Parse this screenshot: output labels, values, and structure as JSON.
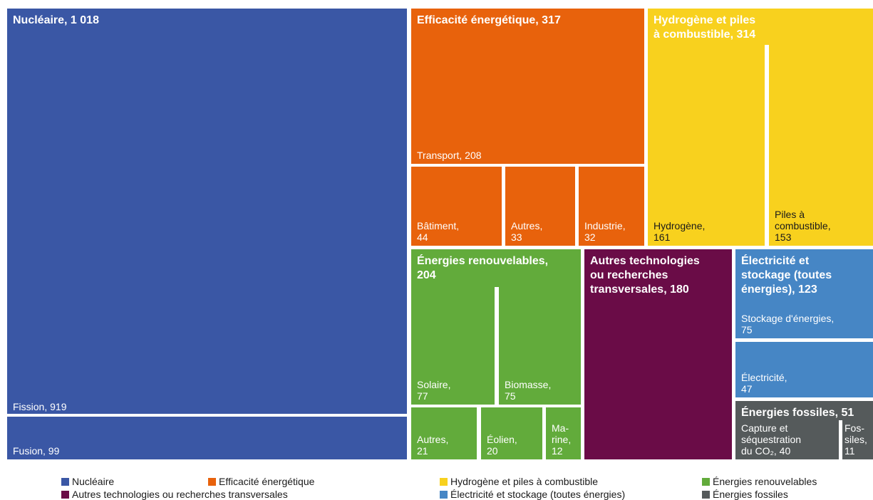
{
  "chart_data": {
    "type": "treemap",
    "categories": [
      {
        "key": "nuc",
        "name": "Nucléaire",
        "label": "Nucléaire, 1 018",
        "value": 1018,
        "color": "#3a57a5",
        "children": [
          {
            "label": "Fission, 919",
            "value": 919
          },
          {
            "label": "Fusion, 99",
            "value": 99
          }
        ]
      },
      {
        "key": "eff",
        "name": "Efficacité énergétique",
        "label": "Efficacité énergétique, 317",
        "value": 317,
        "color": "#e8620c",
        "children": [
          {
            "label": "Transport, 208",
            "value": 208
          },
          {
            "label": "Bâtiment,\n44",
            "value": 44
          },
          {
            "label": "Autres,\n33",
            "value": 33
          },
          {
            "label": "Industrie,\n32",
            "value": 32
          }
        ]
      },
      {
        "key": "hyd",
        "name": "Hydrogène et piles à combustible",
        "label": "Hydrogène et piles\nà combustible, 314",
        "value": 314,
        "color": "#f8d11e",
        "children": [
          {
            "label": "Hydrogène,\n161",
            "value": 161
          },
          {
            "label": "Piles à\ncombustible,\n153",
            "value": 153
          }
        ]
      },
      {
        "key": "ren",
        "name": "Énergies renouvelables",
        "label": "Énergies renouvelables,\n204",
        "value": 204,
        "color": "#62ab3b",
        "children": [
          {
            "label": "Solaire,\n77",
            "value": 77
          },
          {
            "label": "Biomasse,\n75",
            "value": 75
          },
          {
            "label": "Autres,\n21",
            "value": 21
          },
          {
            "label": "Éolien,\n20",
            "value": 20
          },
          {
            "label": "Ma-\nrine,\n12",
            "value": 12
          }
        ]
      },
      {
        "key": "aut",
        "name": "Autres technologies ou recherches transversales",
        "label": "Autres technologies\nou recherches\ntransversales, 180",
        "value": 180,
        "color": "#6a0c47",
        "children": []
      },
      {
        "key": "ele",
        "name": "Électricité et stockage (toutes énergies)",
        "label": "Électricité et\nstockage (toutes\nénergies), 123",
        "value": 123,
        "color": "#4686c5",
        "children": [
          {
            "label": "Stockage d'énergies,\n75",
            "value": 75
          },
          {
            "label": "Électricité,\n47",
            "value": 47
          }
        ]
      },
      {
        "key": "fos",
        "name": "Énergies fossiles",
        "label": "Énergies fossiles, 51",
        "value": 51,
        "color": "#555a5b",
        "children": [
          {
            "label": "Capture et\nséquestration\ndu CO₂, 40",
            "value": 40
          },
          {
            "label": "Fos-\nsiles,\n11",
            "value": 11
          }
        ]
      }
    ],
    "legend": [
      "Nucléaire",
      "Efficacité énergétique",
      "Hydrogène et piles à combustible",
      "Énergies renouvelables",
      "Autres technologies ou recherches transversales",
      "Électricité et stockage (toutes énergies)",
      "Énergies fossiles"
    ]
  }
}
